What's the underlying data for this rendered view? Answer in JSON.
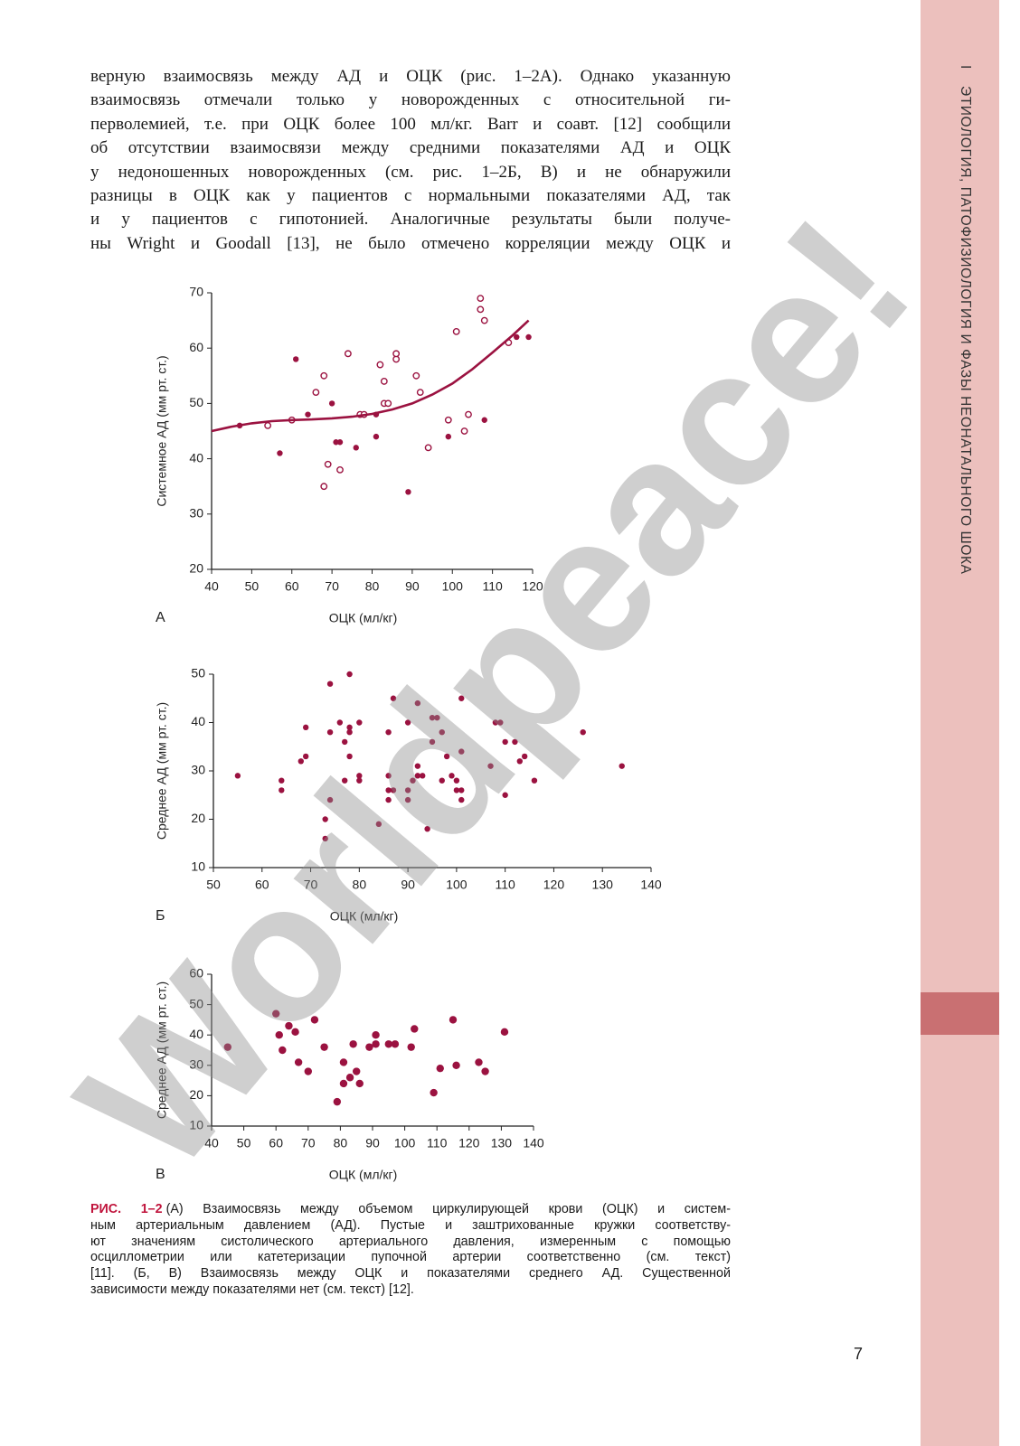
{
  "text": {
    "lines": [
      "верную взаимосвязь между АД и ОЦК (рис. 1–2А). Однако указанную",
      "взаимосвязь отмечали только у новорожденных с относительной ги-",
      "перволемией, т.е. при ОЦК более 100 мл/кг. Barr и соавт. [12] сообщили",
      "об отсутствии взаимосвязи между средними показателями АД и ОЦК",
      "у недоношенных новорожденных (см. рис. 1–2Б, В) и не обнаружили",
      "разницы в ОЦК как у пациентов с нормальными показателями АД, так",
      "и у пациентов с гипотонией. Аналогичные результаты были получе-",
      "ны Wright и Goodall [13], не было отмечено корреляции между ОЦК и"
    ]
  },
  "sidebar": {
    "section": "I",
    "title": "ЭТИОЛОГИЯ, ПАТОФИЗИОЛОГИЯ И ФАЗЫ НЕОНАТАЛЬНОГО ШОКА"
  },
  "chart_data": [
    {
      "type": "scatter",
      "panel_label": "А",
      "xlabel": "ОЦК (мл/кг)",
      "ylabel": "Системное АД (мм рт. ст.)",
      "xlim": [
        40,
        120
      ],
      "ylim": [
        20,
        70
      ],
      "xticks": [
        40,
        50,
        60,
        70,
        80,
        90,
        100,
        110,
        120
      ],
      "yticks": [
        20,
        30,
        40,
        50,
        60,
        70
      ],
      "series": [
        {
          "marker": "open",
          "color": "#9b1240",
          "x": [
            54,
            60,
            66,
            68,
            69,
            68,
            72,
            74,
            77,
            78,
            82,
            83,
            83,
            84,
            86,
            86,
            91,
            92,
            94,
            99,
            101,
            103,
            104,
            107,
            107,
            108,
            114
          ],
          "y": [
            46,
            47,
            52,
            55,
            39,
            35,
            38,
            59,
            48,
            48,
            57,
            54,
            50,
            50,
            58,
            59,
            55,
            52,
            42,
            47,
            63,
            45,
            48,
            69,
            67,
            65,
            61
          ]
        },
        {
          "marker": "filled",
          "color": "#9b1240",
          "x": [
            47,
            57,
            61,
            64,
            70,
            71,
            72,
            76,
            81,
            81,
            89,
            99,
            108,
            116,
            119
          ],
          "y": [
            46,
            41,
            58,
            48,
            50,
            43,
            43,
            42,
            44,
            48,
            34,
            44,
            47,
            62,
            62
          ]
        },
        {
          "marker": "line",
          "color": "#9b1240",
          "x": [
            40,
            45,
            50,
            55,
            60,
            65,
            70,
            75,
            80,
            85,
            90,
            95,
            100,
            105,
            110,
            115,
            119
          ],
          "y": [
            45,
            45.8,
            46.4,
            46.8,
            47,
            47.1,
            47.3,
            47.6,
            48.1,
            48.9,
            50,
            51.6,
            53.6,
            56.2,
            59.2,
            62.3,
            65
          ]
        }
      ]
    },
    {
      "type": "scatter",
      "panel_label": "Б",
      "xlabel": "ОЦК (мл/кг)",
      "ylabel": "Среднее АД (мм рт. ст.)",
      "xlim": [
        50,
        140
      ],
      "ylim": [
        10,
        50
      ],
      "xticks": [
        50,
        60,
        70,
        80,
        90,
        100,
        110,
        120,
        130,
        140
      ],
      "yticks": [
        10,
        20,
        30,
        40,
        50
      ],
      "series": [
        {
          "marker": "filled",
          "color": "#9b1240",
          "x": [
            55,
            64,
            64,
            68,
            69,
            69,
            74,
            73,
            73,
            74,
            74,
            76,
            77,
            77,
            78,
            78,
            78,
            78,
            80,
            80,
            80,
            84,
            86,
            86,
            86,
            86,
            87,
            87,
            90,
            90,
            90,
            91,
            92,
            92,
            92,
            93,
            94,
            95,
            96,
            95,
            97,
            97,
            98,
            99,
            100,
            100,
            101,
            101,
            101,
            101,
            107,
            108,
            109,
            110,
            110,
            112,
            113,
            114,
            116,
            126,
            134
          ],
          "y": [
            29,
            28,
            26,
            32,
            39,
            33,
            38,
            20,
            16,
            24,
            48,
            40,
            28,
            36,
            38,
            50,
            39,
            33,
            29,
            28,
            40,
            19,
            24,
            26,
            29,
            38,
            45,
            26,
            26,
            24,
            40,
            28,
            31,
            29,
            44,
            29,
            18,
            41,
            41,
            36,
            28,
            38,
            33,
            29,
            28,
            26,
            24,
            34,
            26,
            45,
            31,
            40,
            40,
            36,
            25,
            36,
            32,
            33,
            28,
            38,
            31
          ]
        }
      ]
    },
    {
      "type": "scatter",
      "panel_label": "В",
      "xlabel": "ОЦК (мл/кг)",
      "ylabel": "Среднее АД (мм рт. ст.)",
      "xlim": [
        40,
        140
      ],
      "ylim": [
        10,
        60
      ],
      "xticks": [
        40,
        50,
        60,
        70,
        80,
        90,
        100,
        110,
        120,
        130,
        140
      ],
      "yticks": [
        10,
        20,
        30,
        40,
        50,
        60
      ],
      "series": [
        {
          "marker": "filled",
          "color": "#9b1240",
          "x": [
            45,
            60,
            61,
            62,
            64,
            66,
            67,
            70,
            72,
            75,
            79,
            81,
            81,
            83,
            84,
            85,
            86,
            89,
            91,
            91,
            95,
            97,
            102,
            103,
            109,
            111,
            115,
            116,
            123,
            125,
            131
          ],
          "y": [
            36,
            47,
            40,
            35,
            43,
            41,
            31,
            28,
            45,
            36,
            18,
            31,
            24,
            26,
            37,
            28,
            24,
            36,
            37,
            40,
            37,
            37,
            36,
            42,
            21,
            29,
            45,
            30,
            31,
            28,
            41
          ]
        }
      ]
    }
  ],
  "caption": {
    "label": "РИС. 1–2",
    "lines": [
      "(А) Взаимосвязь между объемом циркулирующей крови (ОЦК) и систем-",
      "ным артериальным давлением (АД). Пустые и заштрихованные кружки соответству-",
      "ют значениям систолического артериального давления, измеренным с помощью",
      "осциллометрии или катетеризации пупочной артерии соответственно (см. текст)",
      "[11]. (Б, В) Взаимосвязь между ОЦК и показателями среднего АД. Существенной",
      "зависимости между показателями нет (см. текст) [12]."
    ]
  },
  "page_number": 7,
  "watermark": "Worldpeace!"
}
